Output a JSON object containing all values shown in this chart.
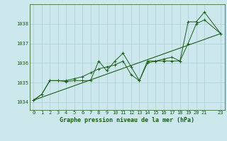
{
  "background_color": "#cce8ec",
  "grid_color": "#aacdd4",
  "line_color": "#1a5e1a",
  "title": "Graphe pression niveau de la mer (hPa)",
  "xlim": [
    -0.5,
    23.5
  ],
  "ylim": [
    1033.6,
    1039.0
  ],
  "yticks": [
    1034,
    1035,
    1036,
    1037,
    1038
  ],
  "xticks": [
    0,
    1,
    2,
    3,
    4,
    5,
    6,
    7,
    8,
    9,
    10,
    11,
    12,
    13,
    14,
    15,
    16,
    17,
    18,
    19,
    20,
    21,
    23
  ],
  "series1_x": [
    0,
    1,
    2,
    3,
    4,
    5,
    6,
    7,
    8,
    9,
    10,
    11,
    12,
    13,
    14,
    15,
    16,
    17,
    18,
    19,
    20,
    21,
    23
  ],
  "series1_y": [
    1034.1,
    1034.4,
    1035.1,
    1035.1,
    1035.05,
    1035.1,
    1035.1,
    1035.1,
    1036.1,
    1035.6,
    1036.1,
    1036.5,
    1035.8,
    1035.1,
    1036.1,
    1036.1,
    1036.1,
    1036.1,
    1036.1,
    1038.1,
    1038.1,
    1038.6,
    1037.5
  ],
  "series2_x": [
    0,
    1,
    2,
    3,
    4,
    5,
    6,
    7,
    8,
    9,
    10,
    11,
    12,
    13,
    14,
    15,
    16,
    17,
    18,
    19,
    20,
    21,
    23
  ],
  "series2_y": [
    1034.1,
    1034.4,
    1035.1,
    1035.1,
    1035.1,
    1035.2,
    1035.3,
    1035.5,
    1035.7,
    1035.8,
    1035.9,
    1036.1,
    1035.4,
    1035.1,
    1036.0,
    1036.1,
    1036.2,
    1036.3,
    1036.1,
    1037.0,
    1038.0,
    1038.2,
    1037.5
  ],
  "trend_x": [
    0,
    23
  ],
  "trend_y": [
    1034.1,
    1037.5
  ]
}
